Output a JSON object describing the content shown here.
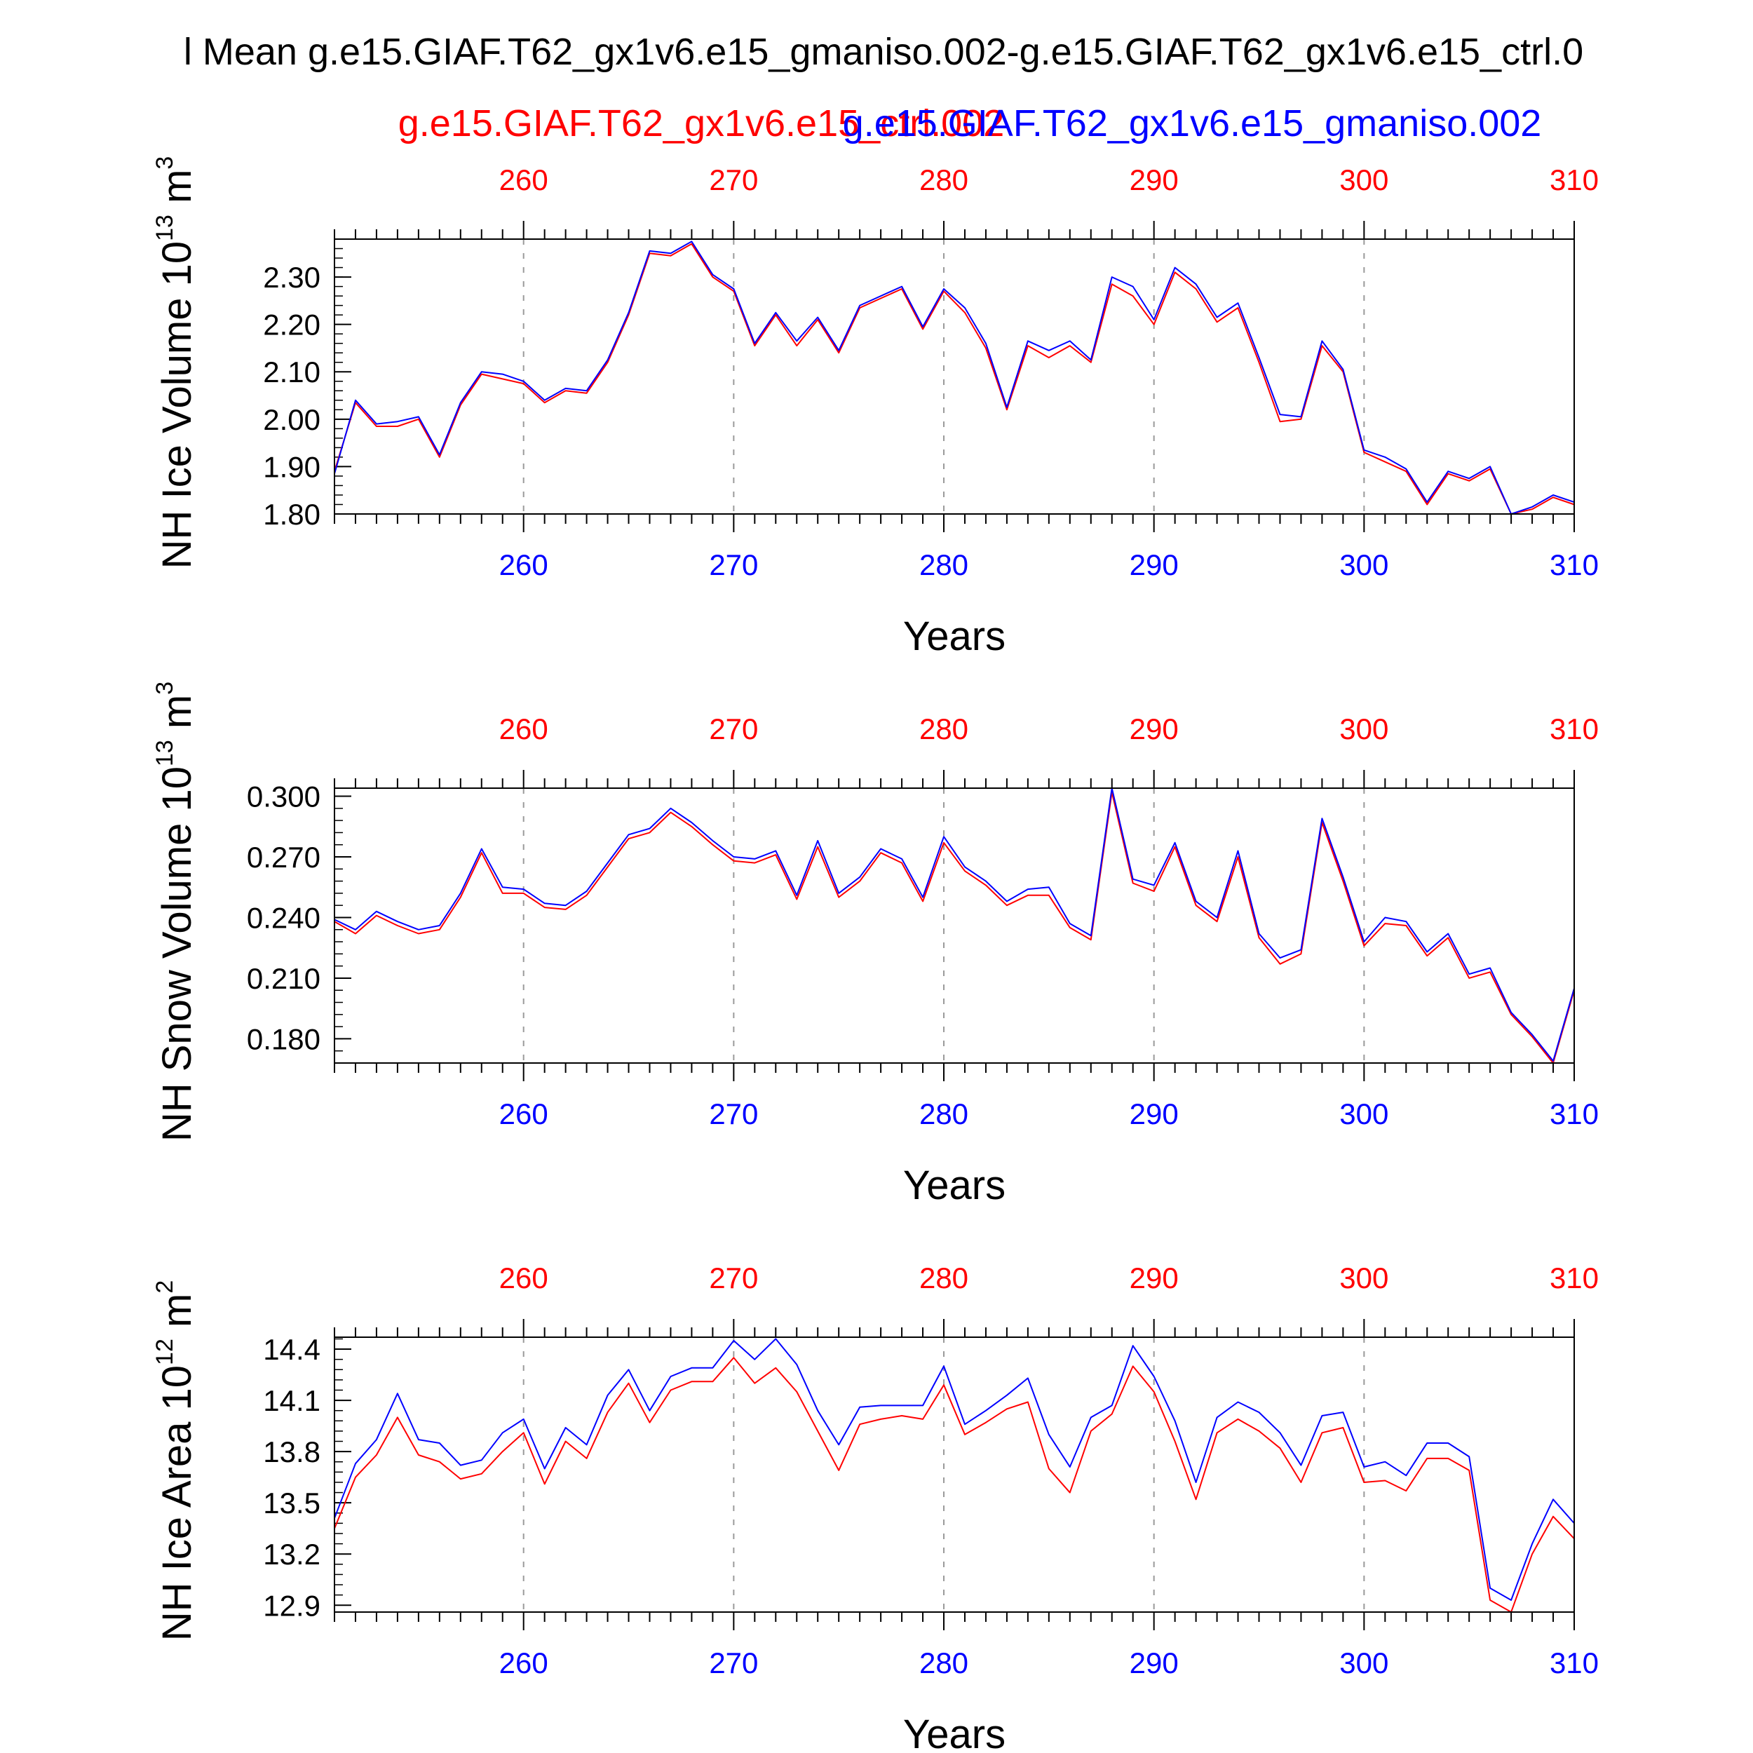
{
  "title": "l Mean g.e15.GIAF.T62_gx1v6.e15_gmaniso.002-g.e15.GIAF.T62_gx1v6.e15_ctrl.0",
  "subtitle_red": "g.e15.GIAF.T62_gx1v6.e15_ctrl.002",
  "subtitle_blue": "g.e15.GIAF.T62_gx1v6.e15_gmaniso.002",
  "colors": {
    "red": "#ff0000",
    "blue": "#0000ff",
    "axis": "#000000",
    "grid": "#9a9a9a"
  },
  "chart_data": [
    {
      "type": "line",
      "ylabel": "NH Ice Volume 10",
      "ylabel_exp": "13",
      "ylabel_unit": " m",
      "ylabel_unit_exp": "3",
      "xlabel": "Years",
      "xlim": [
        251,
        310
      ],
      "ylim": [
        1.8,
        2.38
      ],
      "yticks": [
        1.8,
        1.9,
        2.0,
        2.1,
        2.2,
        2.3
      ],
      "ytick_labels": [
        "1.80",
        "1.90",
        "2.00",
        "2.10",
        "2.20",
        "2.30"
      ],
      "yminor_step": 0.02,
      "xticks": [
        260,
        270,
        280,
        290,
        300,
        310
      ],
      "xtick_labels": [
        "260",
        "270",
        "280",
        "290",
        "300",
        "310"
      ],
      "grid_x": true,
      "x": [
        251,
        252,
        253,
        254,
        255,
        256,
        257,
        258,
        259,
        260,
        261,
        262,
        263,
        264,
        265,
        266,
        267,
        268,
        269,
        270,
        271,
        272,
        273,
        274,
        275,
        276,
        277,
        278,
        279,
        280,
        281,
        282,
        283,
        284,
        285,
        286,
        287,
        288,
        289,
        290,
        291,
        292,
        293,
        294,
        295,
        296,
        297,
        298,
        299,
        300,
        301,
        302,
        303,
        304,
        305,
        306,
        307,
        308,
        309,
        310
      ],
      "series": [
        {
          "color": "red",
          "values": [
            1.89,
            2.035,
            1.985,
            1.985,
            2.0,
            1.92,
            2.03,
            2.095,
            2.085,
            2.075,
            2.035,
            2.06,
            2.055,
            2.12,
            2.22,
            2.35,
            2.345,
            2.37,
            2.3,
            2.27,
            2.155,
            2.22,
            2.155,
            2.21,
            2.14,
            2.235,
            2.255,
            2.275,
            2.19,
            2.27,
            2.225,
            2.15,
            2.02,
            2.155,
            2.13,
            2.155,
            2.12,
            2.285,
            2.26,
            2.2,
            2.31,
            2.275,
            2.205,
            2.235,
            2.12,
            1.995,
            2.0,
            2.155,
            2.1,
            1.93,
            1.91,
            1.89,
            1.82,
            1.885,
            1.87,
            1.895,
            1.8,
            1.81,
            1.835,
            1.82
          ]
        },
        {
          "color": "blue",
          "values": [
            1.885,
            2.04,
            1.99,
            1.995,
            2.005,
            1.925,
            2.035,
            2.1,
            2.095,
            2.08,
            2.04,
            2.065,
            2.06,
            2.125,
            2.225,
            2.355,
            2.35,
            2.375,
            2.305,
            2.275,
            2.16,
            2.225,
            2.165,
            2.215,
            2.145,
            2.24,
            2.26,
            2.28,
            2.195,
            2.275,
            2.235,
            2.16,
            2.025,
            2.165,
            2.145,
            2.165,
            2.125,
            2.3,
            2.28,
            2.21,
            2.32,
            2.285,
            2.215,
            2.245,
            2.13,
            2.01,
            2.005,
            2.165,
            2.105,
            1.935,
            1.92,
            1.895,
            1.825,
            1.89,
            1.875,
            1.9,
            1.8,
            1.815,
            1.84,
            1.825
          ]
        }
      ]
    },
    {
      "type": "line",
      "ylabel": "NH Snow Volume 10",
      "ylabel_exp": "13",
      "ylabel_unit": " m",
      "ylabel_unit_exp": "3",
      "xlabel": "Years",
      "xlim": [
        251,
        310
      ],
      "ylim": [
        0.168,
        0.304
      ],
      "yticks": [
        0.18,
        0.21,
        0.24,
        0.27,
        0.3
      ],
      "ytick_labels": [
        "0.180",
        "0.210",
        "0.240",
        "0.270",
        "0.300"
      ],
      "yminor_step": 0.006,
      "xticks": [
        260,
        270,
        280,
        290,
        300,
        310
      ],
      "xtick_labels": [
        "260",
        "270",
        "280",
        "290",
        "300",
        "310"
      ],
      "grid_x": true,
      "x": [
        251,
        252,
        253,
        254,
        255,
        256,
        257,
        258,
        259,
        260,
        261,
        262,
        263,
        264,
        265,
        266,
        267,
        268,
        269,
        270,
        271,
        272,
        273,
        274,
        275,
        276,
        277,
        278,
        279,
        280,
        281,
        282,
        283,
        284,
        285,
        286,
        287,
        288,
        289,
        290,
        291,
        292,
        293,
        294,
        295,
        296,
        297,
        298,
        299,
        300,
        301,
        302,
        303,
        304,
        305,
        306,
        307,
        308,
        309,
        310
      ],
      "series": [
        {
          "color": "red",
          "values": [
            0.238,
            0.232,
            0.241,
            0.236,
            0.232,
            0.234,
            0.25,
            0.272,
            0.252,
            0.252,
            0.245,
            0.244,
            0.251,
            0.265,
            0.279,
            0.282,
            0.292,
            0.285,
            0.276,
            0.268,
            0.267,
            0.271,
            0.249,
            0.275,
            0.25,
            0.258,
            0.272,
            0.267,
            0.248,
            0.277,
            0.263,
            0.256,
            0.246,
            0.251,
            0.251,
            0.235,
            0.229,
            0.302,
            0.257,
            0.253,
            0.275,
            0.246,
            0.238,
            0.27,
            0.23,
            0.217,
            0.222,
            0.287,
            0.258,
            0.226,
            0.237,
            0.236,
            0.221,
            0.23,
            0.21,
            0.213,
            0.192,
            0.181,
            0.168,
            0.204
          ]
        },
        {
          "color": "blue",
          "values": [
            0.239,
            0.234,
            0.243,
            0.238,
            0.234,
            0.236,
            0.252,
            0.274,
            0.255,
            0.254,
            0.247,
            0.246,
            0.253,
            0.267,
            0.281,
            0.284,
            0.294,
            0.287,
            0.278,
            0.27,
            0.269,
            0.273,
            0.251,
            0.278,
            0.252,
            0.26,
            0.274,
            0.269,
            0.25,
            0.28,
            0.265,
            0.258,
            0.248,
            0.254,
            0.255,
            0.237,
            0.231,
            0.304,
            0.259,
            0.256,
            0.277,
            0.248,
            0.24,
            0.273,
            0.232,
            0.22,
            0.224,
            0.289,
            0.26,
            0.228,
            0.24,
            0.238,
            0.223,
            0.232,
            0.212,
            0.215,
            0.193,
            0.182,
            0.169,
            0.205
          ]
        }
      ]
    },
    {
      "type": "line",
      "ylabel": "NH Ice Area 10",
      "ylabel_exp": "12",
      "ylabel_unit": " m",
      "ylabel_unit_exp": "2",
      "xlabel": "Years",
      "xlim": [
        251,
        310
      ],
      "ylim": [
        12.86,
        14.47
      ],
      "yticks": [
        12.9,
        13.2,
        13.5,
        13.8,
        14.1,
        14.4
      ],
      "ytick_labels": [
        "12.9",
        "13.2",
        "13.5",
        "13.8",
        "14.1",
        "14.4"
      ],
      "yminor_step": 0.06,
      "xticks": [
        260,
        270,
        280,
        290,
        300,
        310
      ],
      "xtick_labels": [
        "260",
        "270",
        "280",
        "290",
        "300",
        "310"
      ],
      "grid_x": true,
      "x": [
        251,
        252,
        253,
        254,
        255,
        256,
        257,
        258,
        259,
        260,
        261,
        262,
        263,
        264,
        265,
        266,
        267,
        268,
        269,
        270,
        271,
        272,
        273,
        274,
        275,
        276,
        277,
        278,
        279,
        280,
        281,
        282,
        283,
        284,
        285,
        286,
        287,
        288,
        289,
        290,
        291,
        292,
        293,
        294,
        295,
        296,
        297,
        298,
        299,
        300,
        301,
        302,
        303,
        304,
        305,
        306,
        307,
        308,
        309,
        310
      ],
      "series": [
        {
          "color": "red",
          "values": [
            13.35,
            13.65,
            13.78,
            14.0,
            13.78,
            13.74,
            13.64,
            13.67,
            13.8,
            13.91,
            13.61,
            13.86,
            13.76,
            14.03,
            14.2,
            13.97,
            14.16,
            14.21,
            14.21,
            14.35,
            14.2,
            14.29,
            14.15,
            13.92,
            13.69,
            13.96,
            13.99,
            14.01,
            13.99,
            14.19,
            13.9,
            13.97,
            14.05,
            14.09,
            13.7,
            13.56,
            13.92,
            14.02,
            14.3,
            14.15,
            13.86,
            13.52,
            13.91,
            13.99,
            13.92,
            13.82,
            13.62,
            13.91,
            13.94,
            13.62,
            13.63,
            13.57,
            13.76,
            13.76,
            13.69,
            12.93,
            12.86,
            13.2,
            13.42,
            13.29
          ]
        },
        {
          "color": "blue",
          "values": [
            13.41,
            13.73,
            13.87,
            14.14,
            13.87,
            13.85,
            13.72,
            13.75,
            13.91,
            13.99,
            13.7,
            13.94,
            13.84,
            14.13,
            14.28,
            14.04,
            14.24,
            14.29,
            14.29,
            14.45,
            14.34,
            14.46,
            14.31,
            14.04,
            13.84,
            14.06,
            14.07,
            14.07,
            14.07,
            14.3,
            13.96,
            14.04,
            14.13,
            14.23,
            13.9,
            13.71,
            14.0,
            14.07,
            14.42,
            14.24,
            13.98,
            13.62,
            14.0,
            14.09,
            14.03,
            13.91,
            13.72,
            14.01,
            14.03,
            13.71,
            13.74,
            13.66,
            13.85,
            13.85,
            13.77,
            13.0,
            12.93,
            13.26,
            13.52,
            13.38
          ]
        }
      ]
    }
  ]
}
